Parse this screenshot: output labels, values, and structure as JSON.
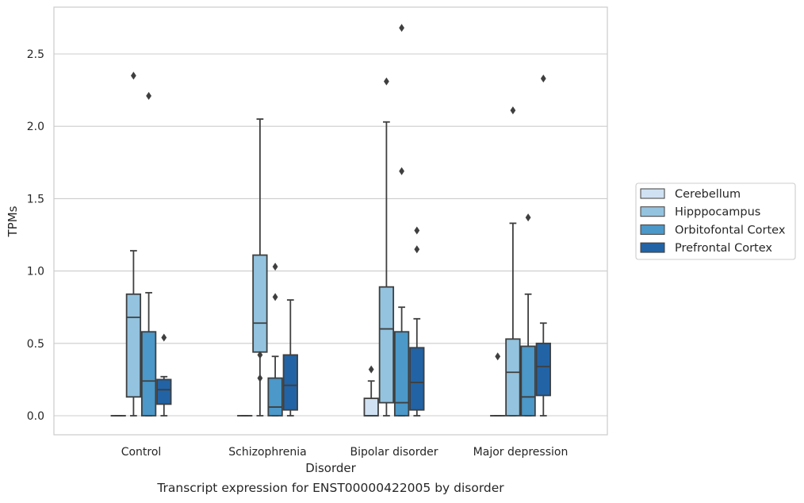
{
  "caption": "Transcript expression for ENST00000422005 by disorder",
  "chart_data": {
    "type": "box",
    "title": "",
    "xlabel": "Disorder",
    "ylabel": "TPMs",
    "ylim": [
      -0.13,
      2.83
    ],
    "yticks": [
      "0.0",
      "0.5",
      "1.0",
      "1.5",
      "2.0",
      "2.5"
    ],
    "grid": true,
    "legend_position": "right",
    "categories": [
      "Control",
      "Schizophrenia",
      "Bipolar disorder",
      "Major depression"
    ],
    "series": [
      {
        "name": "Cerebellum",
        "color": "#cfe1f2",
        "boxes": [
          {
            "whislo": 0,
            "q1": 0,
            "med": 0,
            "q3": 0,
            "whishi": 0,
            "fliers": []
          },
          {
            "whislo": 0,
            "q1": 0,
            "med": 0,
            "q3": 0,
            "whishi": 0,
            "fliers": []
          },
          {
            "whislo": 0,
            "q1": 0,
            "med": 0,
            "q3": 0.12,
            "whishi": 0.24,
            "fliers": [
              0.32
            ]
          },
          {
            "whislo": 0,
            "q1": 0,
            "med": 0,
            "q3": 0,
            "whishi": 0,
            "fliers": [
              0.41
            ]
          }
        ]
      },
      {
        "name": "Hipppocampus",
        "color": "#93c3df",
        "boxes": [
          {
            "whislo": 0,
            "q1": 0.13,
            "med": 0.68,
            "q3": 0.84,
            "whishi": 1.14,
            "fliers": [
              2.35
            ]
          },
          {
            "whislo": 0,
            "q1": 0.44,
            "med": 0.64,
            "q3": 1.11,
            "whishi": 2.05,
            "fliers": [
              0.42,
              0.26
            ]
          },
          {
            "whislo": 0,
            "q1": 0.09,
            "med": 0.6,
            "q3": 0.89,
            "whishi": 2.03,
            "fliers": [
              2.31
            ]
          },
          {
            "whislo": 0,
            "q1": 0,
            "med": 0.3,
            "q3": 0.53,
            "whishi": 1.33,
            "fliers": [
              2.11
            ]
          }
        ]
      },
      {
        "name": "Orbitofontal Cortex",
        "color": "#4b98c9",
        "boxes": [
          {
            "whislo": 0,
            "q1": 0,
            "med": 0.24,
            "q3": 0.58,
            "whishi": 0.85,
            "fliers": [
              2.21
            ]
          },
          {
            "whislo": 0,
            "q1": 0,
            "med": 0.06,
            "q3": 0.26,
            "whishi": 0.41,
            "fliers": [
              1.03,
              0.82
            ]
          },
          {
            "whislo": 0,
            "q1": 0,
            "med": 0.09,
            "q3": 0.58,
            "whishi": 0.75,
            "fliers": [
              2.68,
              1.69
            ]
          },
          {
            "whislo": 0,
            "q1": 0,
            "med": 0.13,
            "q3": 0.48,
            "whishi": 0.84,
            "fliers": [
              1.37
            ]
          }
        ]
      },
      {
        "name": "Prefrontal Cortex",
        "color": "#2263a5",
        "boxes": [
          {
            "whislo": 0,
            "q1": 0.08,
            "med": 0.18,
            "q3": 0.25,
            "whishi": 0.27,
            "fliers": [
              0.54
            ]
          },
          {
            "whislo": 0,
            "q1": 0.04,
            "med": 0.21,
            "q3": 0.42,
            "whishi": 0.8,
            "fliers": []
          },
          {
            "whislo": 0,
            "q1": 0.04,
            "med": 0.23,
            "q3": 0.47,
            "whishi": 0.67,
            "fliers": [
              1.28,
              1.15
            ]
          },
          {
            "whislo": 0,
            "q1": 0.14,
            "med": 0.34,
            "q3": 0.5,
            "whishi": 0.64,
            "fliers": [
              2.33
            ]
          }
        ]
      }
    ]
  }
}
